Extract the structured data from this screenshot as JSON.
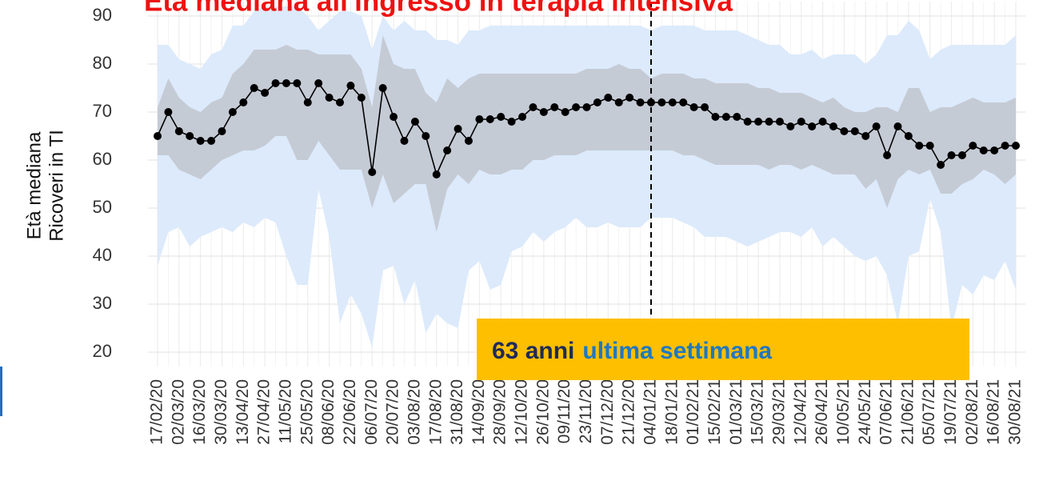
{
  "chart_data": {
    "type": "line",
    "title": "Età mediana all'ingresso in terapia intensiva",
    "y_label": [
      "Età mediana",
      "Ricoveri in TI"
    ],
    "annotation": [
      "63 anni",
      "ultima settimana"
    ],
    "categories": [
      "17/02/20",
      null,
      "02/03/20",
      null,
      "16/03/20",
      null,
      "30/03/20",
      null,
      "13/04/20",
      null,
      "27/04/20",
      null,
      "11/05/20",
      null,
      "25/05/20",
      null,
      "08/06/20",
      null,
      "22/06/20",
      null,
      "06/07/20",
      null,
      "20/07/20",
      null,
      "03/08/20",
      null,
      "17/08/20",
      null,
      "31/08/20",
      null,
      "14/09/20",
      null,
      "28/09/20",
      null,
      "12/10/20",
      null,
      "26/10/20",
      null,
      "09/11/20",
      null,
      "23/11/20",
      null,
      "07/12/20",
      null,
      "21/12/20",
      null,
      "04/01/21",
      null,
      "18/01/21",
      null,
      "01/02/21",
      null,
      "15/02/21",
      null,
      "01/03/21",
      null,
      "15/03/21",
      null,
      "29/03/21",
      null,
      "12/04/21",
      null,
      "26/04/21",
      null,
      "10/05/21",
      null,
      "24/05/21",
      null,
      "07/06/21",
      null,
      "21/06/21",
      null,
      "05/07/21",
      null,
      "19/07/21",
      null,
      "02/08/21",
      null,
      "16/08/21",
      null,
      "30/08/21"
    ],
    "values": [
      65,
      70,
      66,
      65,
      64,
      64,
      66,
      70,
      72,
      75,
      74,
      76,
      76,
      76,
      72,
      76,
      73,
      72,
      75.5,
      73,
      57.5,
      75,
      69,
      64,
      68,
      65,
      57,
      62,
      66.5,
      64,
      68.5,
      68.5,
      69,
      68,
      69,
      71,
      70,
      71,
      70,
      71,
      71,
      72,
      73,
      72,
      73,
      72,
      72,
      72,
      72,
      72,
      71,
      71,
      69,
      69,
      69,
      68,
      68,
      68,
      68,
      67,
      68,
      67,
      68,
      67,
      66,
      66,
      65,
      67,
      61,
      67,
      65,
      63,
      63,
      59,
      61,
      61,
      63,
      62,
      62,
      63,
      63
    ],
    "color": "#000000",
    "band_outer": {
      "color": "#dceafb",
      "high": [
        84,
        84,
        81,
        80,
        79,
        82,
        83,
        88,
        88,
        91,
        92,
        92,
        92,
        92,
        90,
        87,
        89,
        91,
        91,
        90,
        83,
        90,
        87,
        89,
        87,
        87,
        85,
        85,
        84,
        87,
        87,
        88,
        88,
        88,
        88,
        88,
        88,
        88,
        88,
        88,
        88,
        88,
        88,
        88,
        88,
        88,
        87,
        88,
        88,
        88,
        88,
        87,
        87,
        87,
        87,
        86,
        85,
        84,
        84,
        82,
        82,
        83,
        81,
        82,
        82,
        82,
        80,
        82,
        86,
        86,
        89,
        87,
        81,
        83,
        84,
        84,
        84,
        84,
        84,
        84,
        86
      ],
      "low": [
        38,
        45,
        46,
        42,
        44,
        45,
        46,
        45,
        47,
        46,
        48,
        47,
        40,
        34,
        34,
        54,
        44,
        26,
        32,
        28,
        21,
        37,
        38,
        30,
        35,
        24,
        28,
        26,
        25,
        37,
        39,
        33,
        34,
        41,
        42,
        45,
        43,
        45,
        46,
        48,
        46,
        46,
        47,
        46,
        46,
        46,
        48,
        48,
        48,
        47,
        46,
        44,
        44,
        44,
        43,
        42,
        43,
        44,
        45,
        45,
        44,
        46,
        42,
        44,
        42,
        40,
        39,
        40,
        36,
        26,
        40,
        41,
        52,
        45,
        25,
        34,
        32,
        36,
        35,
        39,
        33
      ]
    },
    "band_inner": {
      "color": "#c5cbd5",
      "high": [
        71,
        77,
        73,
        71,
        70,
        72,
        73,
        78,
        80,
        83,
        83,
        83,
        84,
        83,
        83,
        82,
        82,
        82,
        82,
        79,
        71,
        86,
        80,
        79,
        79,
        74,
        72,
        77,
        75,
        77,
        78,
        78,
        78,
        78,
        78,
        78,
        78,
        78,
        78,
        78,
        79,
        79,
        79,
        80,
        79,
        79,
        77,
        78,
        78,
        78,
        77,
        77,
        76,
        76,
        76,
        76,
        75,
        75,
        74,
        74,
        74,
        73,
        72,
        73,
        71,
        70,
        70,
        71,
        71,
        70,
        75,
        75,
        70,
        71,
        71,
        72,
        73,
        72,
        72,
        72,
        73
      ],
      "low": [
        61,
        61,
        58,
        57,
        56,
        58,
        60,
        61,
        62,
        62,
        63,
        65,
        65,
        60,
        60,
        64,
        61,
        58,
        58,
        58,
        50,
        57,
        51,
        53,
        55,
        55,
        45,
        54,
        57,
        55,
        58,
        57,
        57,
        58,
        58,
        60,
        60,
        61,
        61,
        61,
        62,
        62,
        62,
        62,
        62,
        62,
        62,
        62,
        62,
        61,
        61,
        60,
        59,
        59,
        59,
        59,
        59,
        58,
        59,
        59,
        58,
        59,
        58,
        57,
        57,
        57,
        54,
        56,
        50,
        56,
        58,
        57,
        58,
        53,
        53,
        55,
        56,
        58,
        57,
        55,
        57
      ]
    },
    "reference_line": {
      "x": "04/01/21"
    },
    "ylim": [
      17,
      93
    ],
    "yticks": [
      20,
      30,
      40,
      50,
      60,
      70,
      80,
      90
    ],
    "grid": true
  }
}
